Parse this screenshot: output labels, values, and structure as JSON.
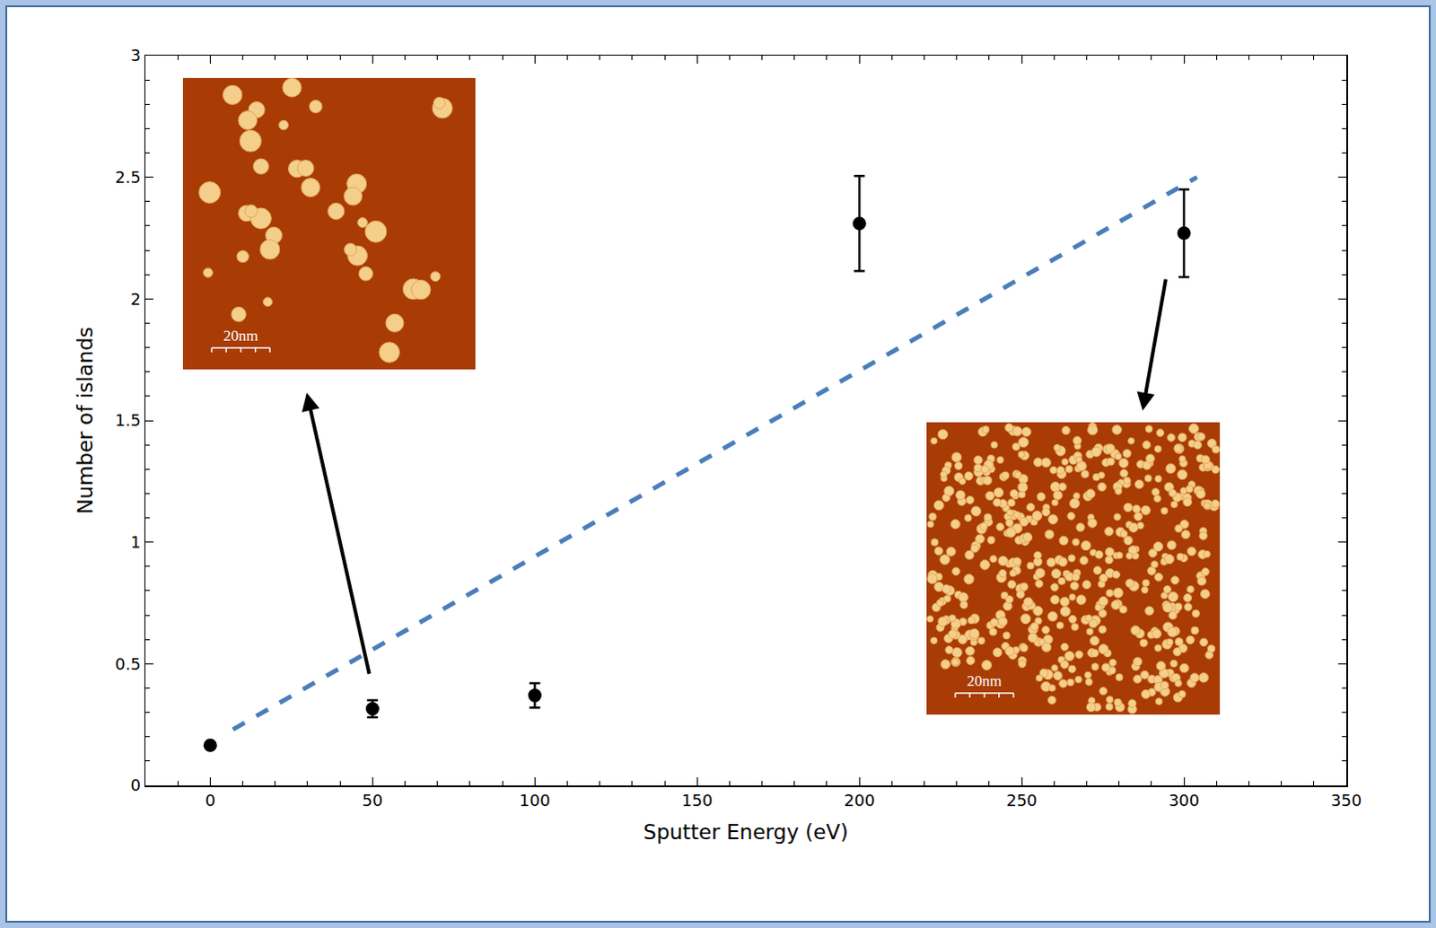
{
  "chart_data": {
    "type": "scatter",
    "x_label": "Sputter Energy (eV)",
    "y_label": "Number of islands",
    "series": [
      {
        "type": "scatter",
        "color": "#000000",
        "marker": "circle",
        "x": [
          0,
          50,
          100,
          200,
          300
        ],
        "values": [
          0.165,
          0.315,
          0.37,
          2.31,
          2.27
        ],
        "error": [
          null,
          0.035,
          0.05,
          0.195,
          0.18
        ]
      },
      {
        "type": "line",
        "color": "#4a7ebb",
        "line_style": "dashed",
        "x": [
          7,
          304
        ],
        "values": [
          0.23,
          2.5
        ]
      }
    ],
    "xlim": [
      -20,
      350
    ],
    "xticks": [
      0,
      50,
      100,
      150,
      200,
      250,
      300,
      350
    ],
    "ylim": [
      0,
      3
    ],
    "yticks": [
      0,
      0.5,
      1,
      1.5,
      2,
      2.5,
      3
    ],
    "grid": false,
    "insets": [
      {
        "scale_label": "20nm"
      },
      {
        "scale_label": "20nm"
      }
    ]
  }
}
